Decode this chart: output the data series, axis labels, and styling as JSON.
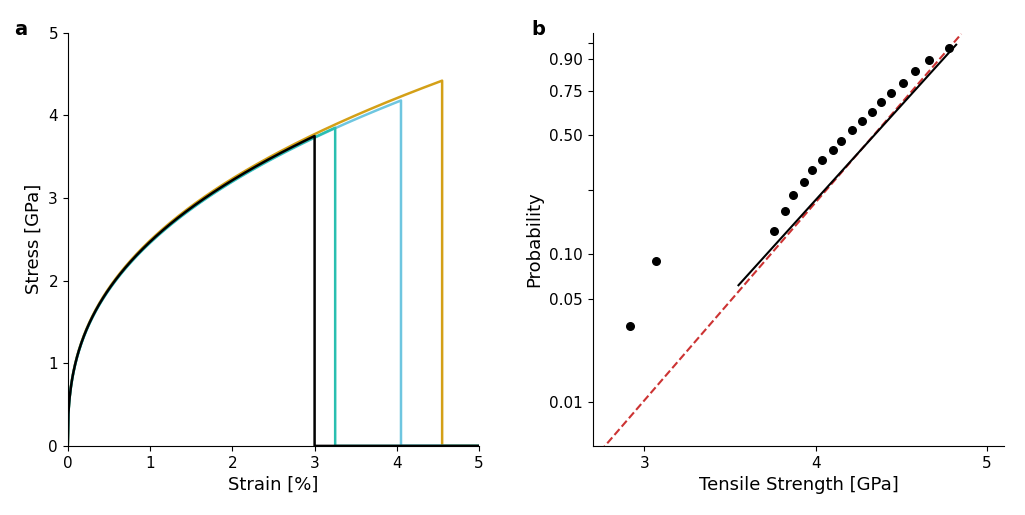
{
  "panel_a": {
    "label": "a",
    "xlabel": "Strain [%]",
    "ylabel": "Stress [GPa]",
    "xlim": [
      0,
      5
    ],
    "ylim": [
      0,
      5
    ],
    "xticks": [
      0,
      1,
      2,
      3,
      4,
      5
    ],
    "yticks": [
      0,
      1,
      2,
      3,
      4,
      5
    ],
    "curves": [
      {
        "color": "#000000",
        "strain_max": 3.0,
        "stress_max": 3.75,
        "n": 0.38
      },
      {
        "color": "#2abfb0",
        "strain_max": 3.25,
        "stress_max": 3.85,
        "n": 0.38
      },
      {
        "color": "#6ec6e0",
        "strain_max": 4.05,
        "stress_max": 4.18,
        "n": 0.38
      },
      {
        "color": "#d4a017",
        "strain_max": 4.55,
        "stress_max": 4.42,
        "n": 0.38
      }
    ]
  },
  "panel_b": {
    "label": "b",
    "xlabel": "Tensile Strength [GPa]",
    "ylabel": "Probability",
    "xlim": [
      2.7,
      5.1
    ],
    "xticks": [
      3,
      4,
      5
    ],
    "ytick_probs": [
      0.01,
      0.05,
      0.1,
      0.25,
      0.5,
      0.75,
      0.9,
      0.95
    ],
    "ytick_labels": [
      "0.01",
      "0.05",
      "0.10",
      "",
      "0.50",
      "0.75",
      "0.90",
      ""
    ],
    "scatter_x": [
      2.92,
      3.07,
      3.76,
      3.82,
      3.87,
      3.93,
      3.98,
      4.04,
      4.1,
      4.15,
      4.21,
      4.27,
      4.33,
      4.38,
      4.44,
      4.51,
      4.58,
      4.66,
      4.78
    ],
    "scatter_p": [
      0.033,
      0.09,
      0.14,
      0.188,
      0.235,
      0.28,
      0.327,
      0.373,
      0.42,
      0.468,
      0.525,
      0.58,
      0.633,
      0.687,
      0.742,
      0.796,
      0.851,
      0.898,
      0.936
    ],
    "black_line_x": [
      3.55,
      4.82
    ],
    "black_line_p": [
      0.062,
      0.945
    ],
    "red_line_x": [
      2.7,
      4.85
    ],
    "red_line_p": [
      0.004,
      0.968
    ]
  }
}
